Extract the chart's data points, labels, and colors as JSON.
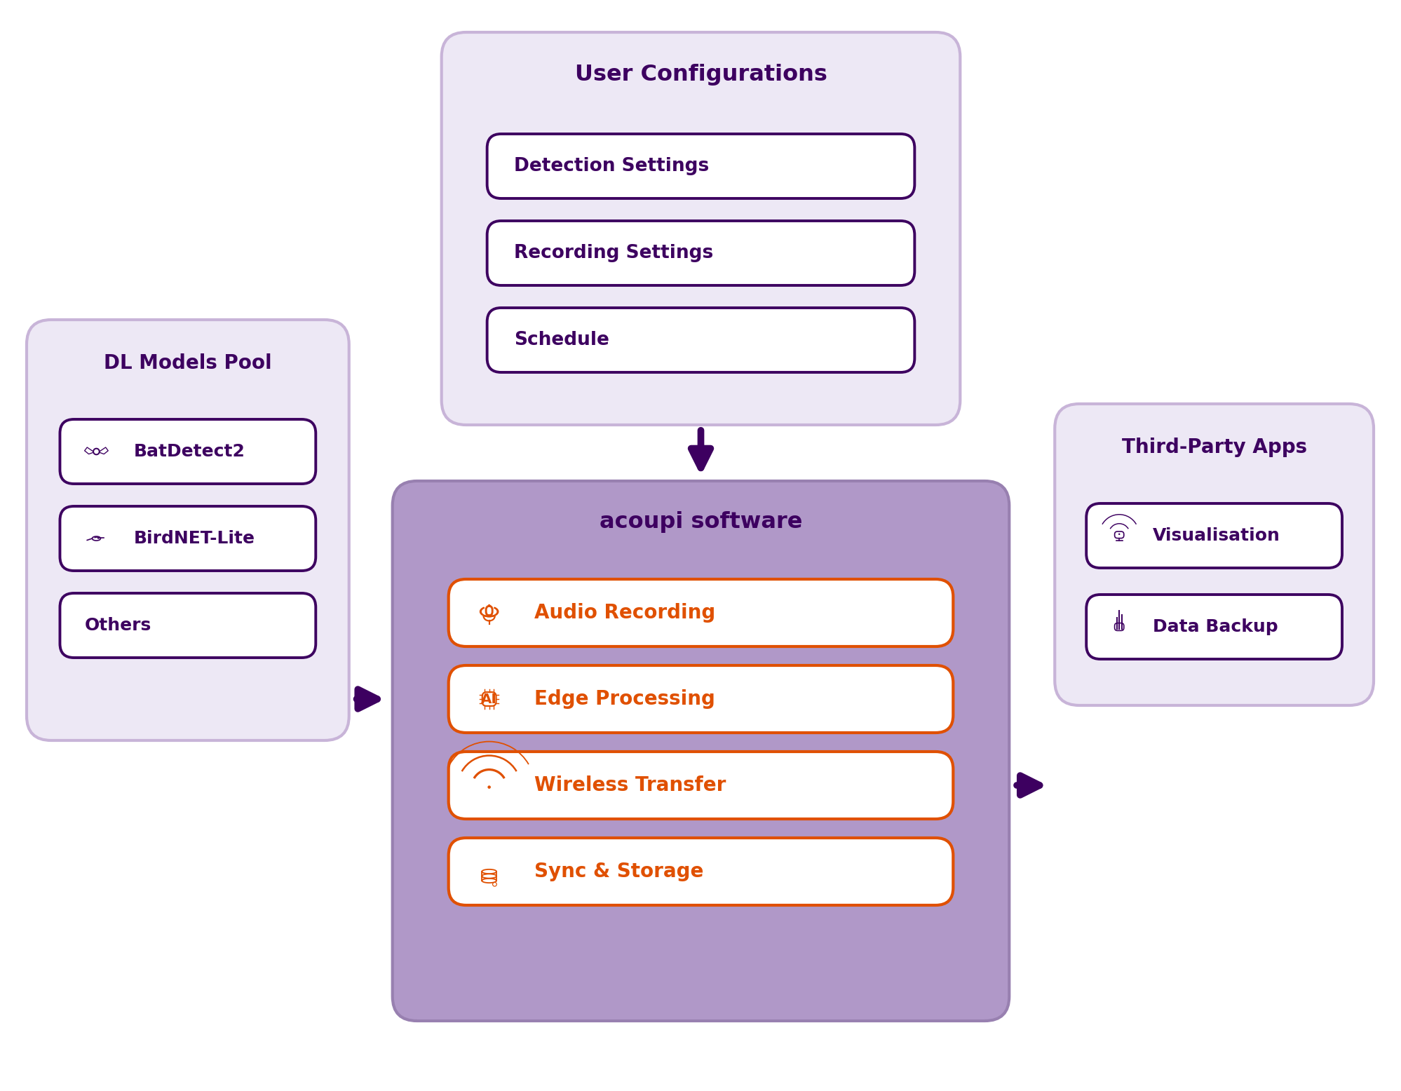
{
  "bg_color": "#ffffff",
  "light_purple_bg": "#ede8f5",
  "light_purple_border": "#c8b4d8",
  "dark_purple": "#3d0060",
  "orange": "#e05000",
  "orange_border": "#e05000",
  "acoupi_bg": "#b098c8",
  "acoupi_border": "#9880b0",
  "arrow_color": "#3d0060",
  "user_config_title": "User Configurations",
  "user_config_items": [
    "Detection Settings",
    "Recording Settings",
    "Schedule"
  ],
  "acoupi_title": "acoupi software",
  "acoupi_items": [
    "Audio Recording",
    "Edge Processing",
    "Wireless Transfer",
    "Sync & Storage"
  ],
  "dl_title": "DL Models Pool",
  "dl_items": [
    "BatDetect2",
    "BirdNET-Lite",
    "Others"
  ],
  "tp_title": "Third-Party Apps",
  "tp_items": [
    "Visualisation",
    "Data Backup"
  ],
  "figw": 19.99,
  "figh": 15.56,
  "xmax": 20.0,
  "ymax": 15.56
}
